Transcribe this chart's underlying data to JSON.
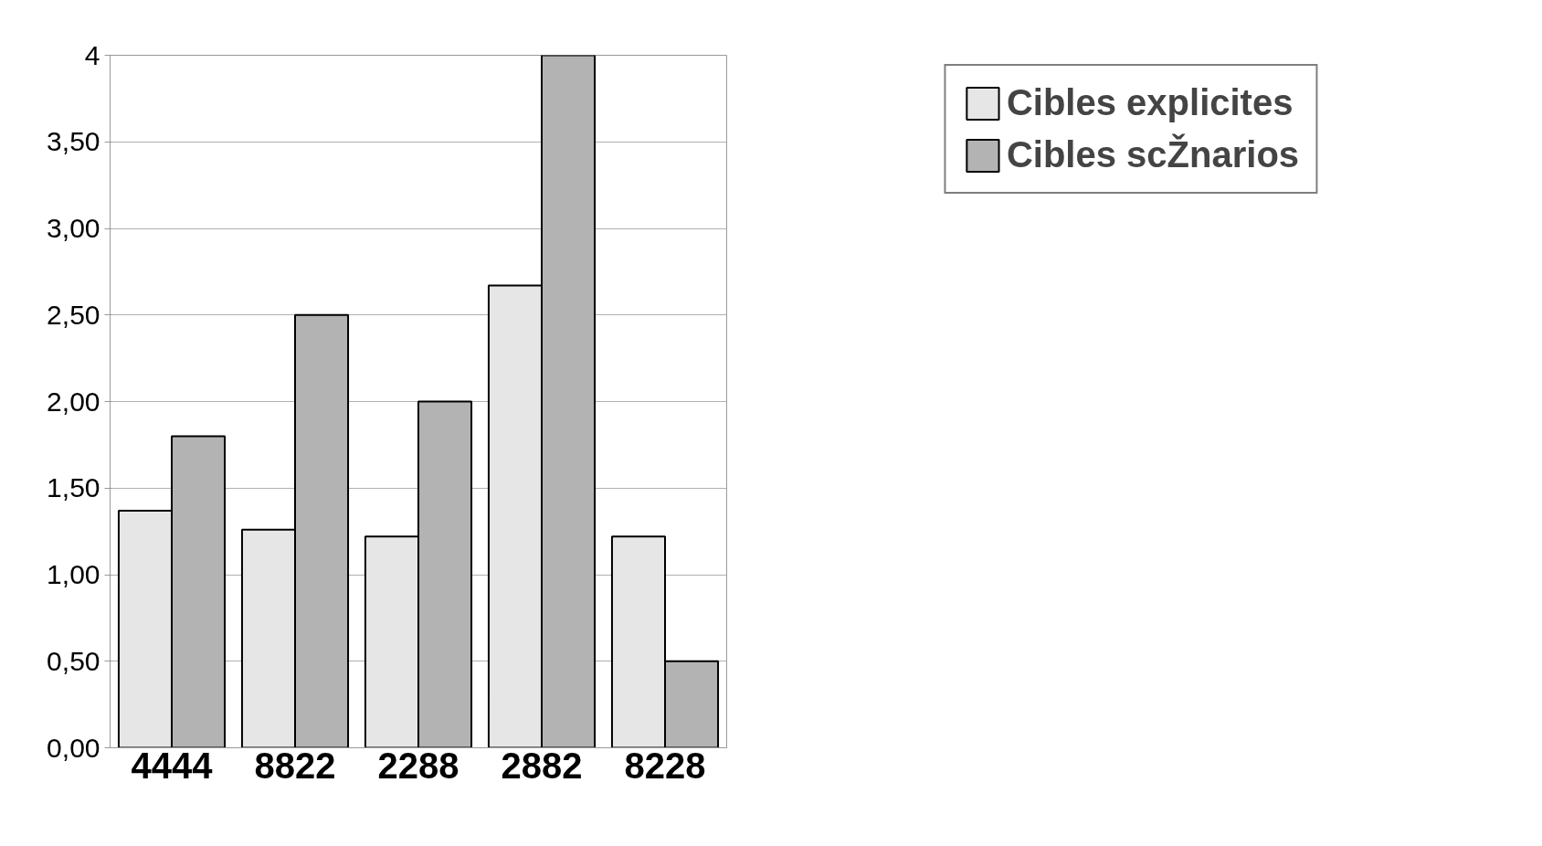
{
  "chart_data": {
    "type": "bar",
    "categories": [
      "4444",
      "8822",
      "2288",
      "2882",
      "8228"
    ],
    "series": [
      {
        "name": "Cibles explicites",
        "color": "#e6e6e6",
        "values": [
          1.37,
          1.26,
          1.22,
          2.67,
          1.22
        ]
      },
      {
        "name": "Cibles scŽnarios",
        "color": "#b3b3b3",
        "values": [
          1.8,
          2.5,
          2.0,
          4.0,
          0.5
        ]
      }
    ],
    "ylim": [
      0,
      4
    ],
    "yticks": [
      {
        "value": 0,
        "label": "0,00"
      },
      {
        "value": 0.5,
        "label": "0,50"
      },
      {
        "value": 1,
        "label": "1,00"
      },
      {
        "value": 1.5,
        "label": "1,50"
      },
      {
        "value": 2,
        "label": "2,00"
      },
      {
        "value": 2.5,
        "label": "2,50"
      },
      {
        "value": 3,
        "label": "3,00"
      },
      {
        "value": 3.5,
        "label": "3,50"
      },
      4
    ],
    "grid": "y",
    "legend": "top right"
  }
}
